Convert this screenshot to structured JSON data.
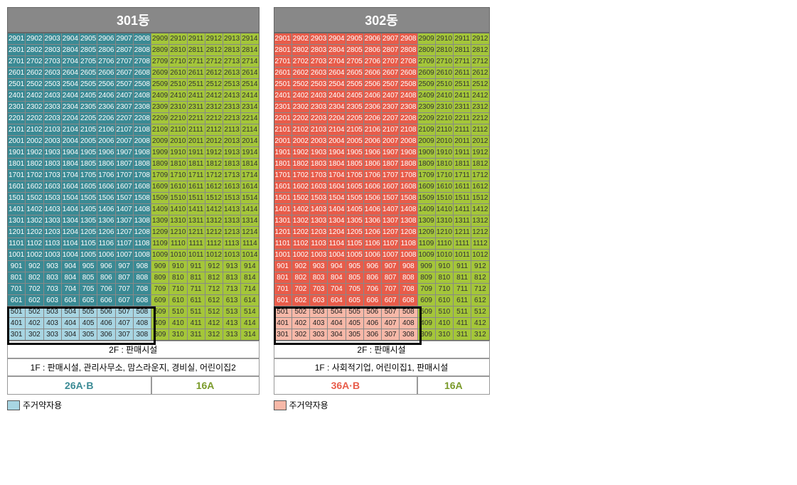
{
  "buildings": [
    {
      "title": "301동",
      "cols": 14,
      "leftCols": 8,
      "leftColor": "teal",
      "highlightColor": "lteal",
      "floorTop": 29,
      "floorBottom": 3,
      "highlightFloors": [
        5,
        4,
        3
      ],
      "footer2F": "2F : 판매시설",
      "footer1F": "1F : 판매시설, 관리사무소, 맘스라운지, 경비실, 어린이집2",
      "typeLeft": "26A·B",
      "typeLeftColor": "#3a8a94",
      "typeRight": "16A",
      "typeRightColor": "#7a9a2a",
      "legend": "주거약자용",
      "legendColor": "#a8d5e2"
    },
    {
      "title": "302동",
      "cols": 12,
      "leftCols": 8,
      "leftColor": "red",
      "highlightColor": "lred",
      "floorTop": 29,
      "floorBottom": 3,
      "highlightFloors": [
        5,
        4,
        3
      ],
      "footer2F": "2F : 판매시설",
      "footer1F": "1F : 사회적기업, 어린이집1, 판매시설",
      "typeLeft": "36A·B",
      "typeLeftColor": "#e85c4a",
      "typeRight": "16A",
      "typeRightColor": "#7a9a2a",
      "legend": "주거약자용",
      "legendColor": "#f7b8a8"
    }
  ],
  "rightColor": "green",
  "colors": {
    "teal": "#3a8a94",
    "green": "#a4c639",
    "red": "#e85c4a",
    "lteal": "#a8d5e2",
    "lred": "#f7b8a8"
  }
}
